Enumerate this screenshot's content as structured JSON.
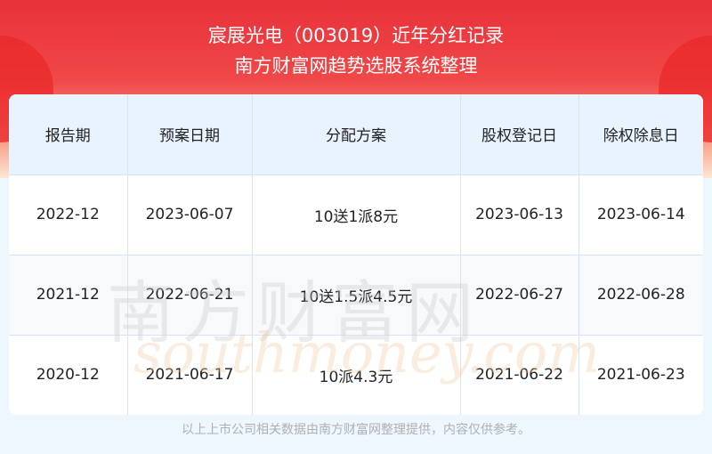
{
  "header": {
    "title": "宸展光电（003019）近年分红记录",
    "subtitle": "南方财富网趋势选股系统整理"
  },
  "table": {
    "columns": [
      "报告期",
      "预案日期",
      "分配方案",
      "股权登记日",
      "除权除息日"
    ],
    "rows": [
      [
        "2022-12",
        "2023-06-07",
        "10送1派8元",
        "2023-06-13",
        "2023-06-14"
      ],
      [
        "2021-12",
        "2022-06-21",
        "10送1.5派4.5元",
        "2022-06-27",
        "2022-06-28"
      ],
      [
        "2020-12",
        "2021-06-17",
        "10派4.3元",
        "2021-06-22",
        "2021-06-23"
      ]
    ]
  },
  "watermark": {
    "cn": "南方财富网",
    "en": "southmoney.com"
  },
  "footer": "以上上市公司相关数据由南方财富网整理提供，内容仅供参考。"
}
